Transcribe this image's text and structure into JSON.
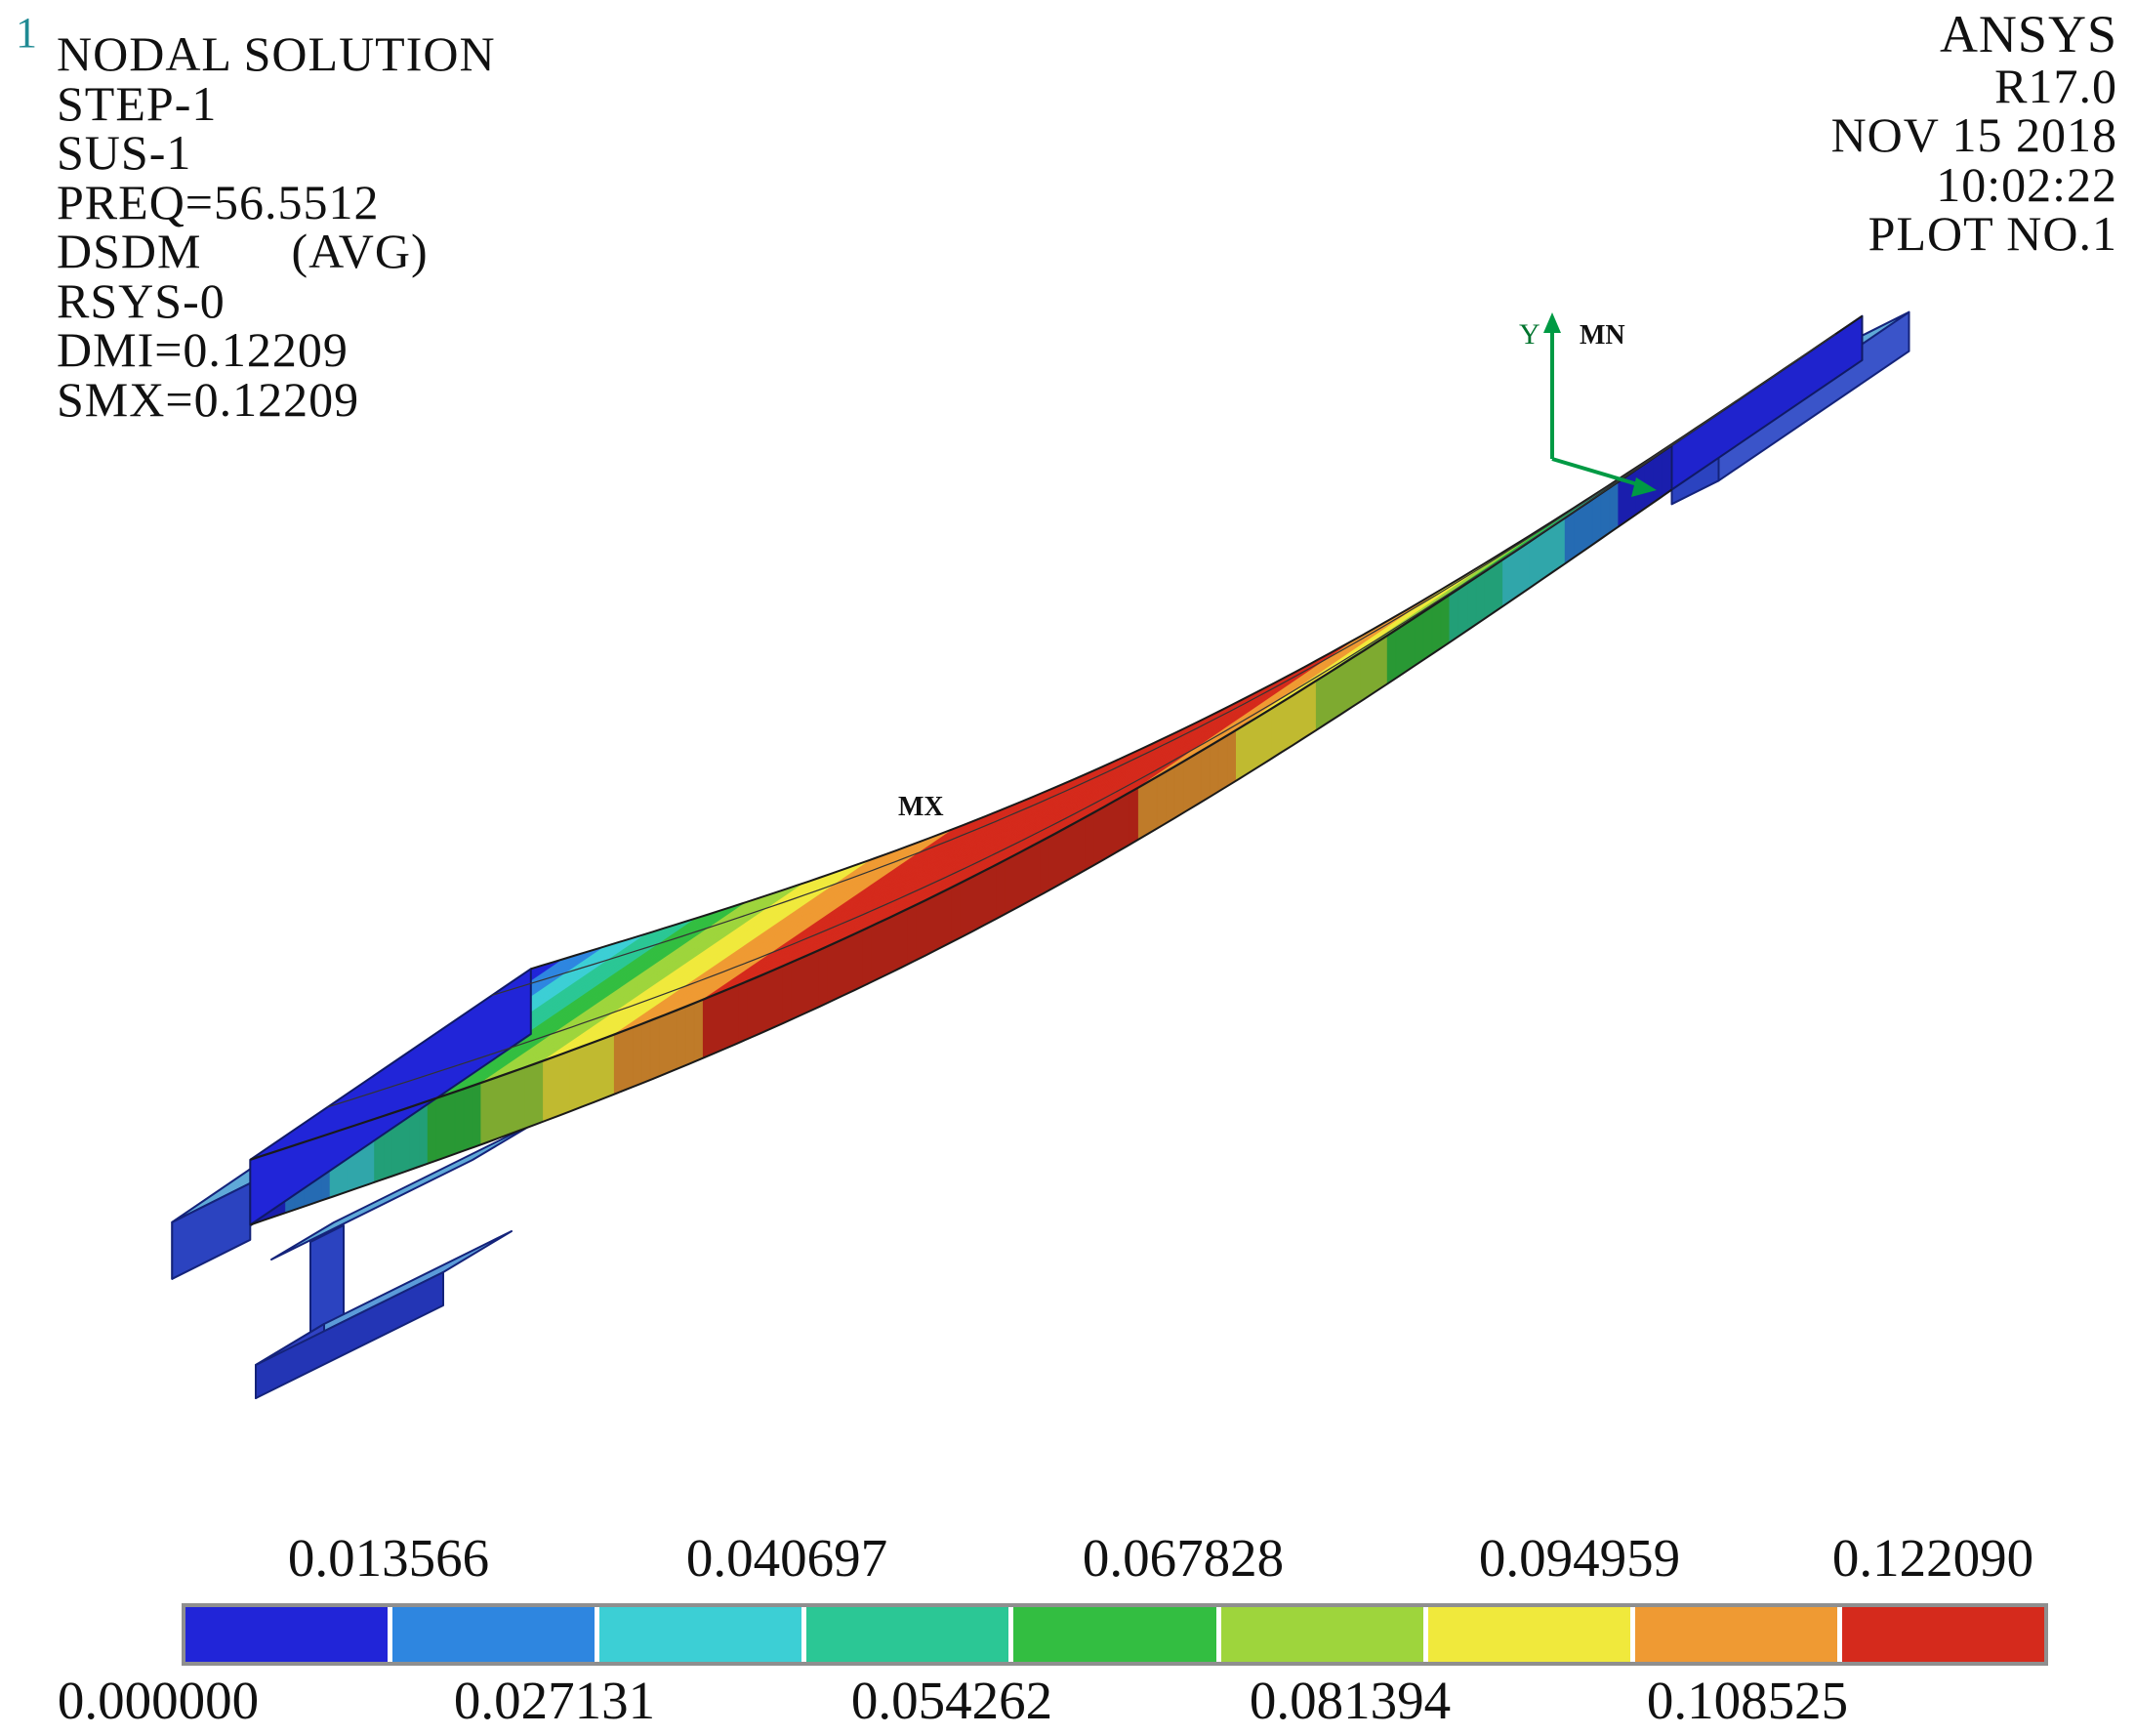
{
  "chart_data": {
    "type": "heatmap",
    "title": "NODAL SOLUTION",
    "quantity": "DSDM (AVG)",
    "step": "STEP-1",
    "substep": "SUS-1",
    "frequency": 56.5512,
    "rsys": "RSYS-0",
    "dmx": 0.12209,
    "smx": 0.12209,
    "value_min": 0.0,
    "value_max": 0.12209,
    "contour_levels": [
      0.0,
      0.013566,
      0.027131,
      0.040697,
      0.054262,
      0.067828,
      0.081394,
      0.094959,
      0.108525,
      0.12209
    ],
    "band_colors": [
      "#2125D8",
      "#2E86E0",
      "#3CCFD5",
      "#2BC795",
      "#33BE41",
      "#9ED53C",
      "#F0E93C",
      "#EF9A33",
      "#D52A1C"
    ],
    "shape_note": "Beam first bending mode: displacement magnitude 0 at both ends (blue) rising to 0.12209 at midspan (red)"
  },
  "page": {
    "window_number": "1"
  },
  "annotations": {
    "left": [
      "NODAL SOLUTION",
      "STEP-1",
      "SUS-1",
      "PREQ=56.5512",
      "DSDM",
      "(AVG)",
      "RSYS-0",
      "DMI=0.12209",
      "SMX=0.12209"
    ],
    "right": [
      "ANSYS",
      "R17.0",
      "NOV 15 2018",
      "10:02:22",
      "PLOT NO.1"
    ]
  },
  "markers": {
    "max": "MX",
    "min": "MN",
    "axis_y": "Y"
  },
  "legend": {
    "labels_top": [
      "0.013566",
      "0.040697",
      "0.067828",
      "0.094959",
      "0.122090"
    ],
    "labels_bottom": [
      "0.000000",
      "0.027131",
      "0.054262",
      "0.081394",
      "0.108525"
    ]
  }
}
